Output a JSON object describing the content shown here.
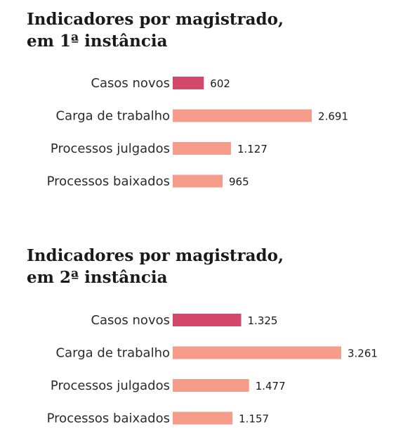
{
  "colors": {
    "highlight": "#d2476a",
    "bar": "#f59c8a",
    "text": "#1a1a1a"
  },
  "chart_data": [
    {
      "type": "bar",
      "orientation": "horizontal",
      "title": "Indicadores por magistrado,\nem 1ª instância",
      "categories": [
        "Casos novos",
        "Carga de trabalho",
        "Processos julgados",
        "Processos baixados"
      ],
      "values": [
        602,
        2691,
        1127,
        965
      ],
      "value_labels": [
        "602",
        "2.691",
        "1.127",
        "965"
      ],
      "highlight_index": 0,
      "xlim": [
        0,
        3261
      ]
    },
    {
      "type": "bar",
      "orientation": "horizontal",
      "title": "Indicadores por magistrado,\nem 2ª instância",
      "categories": [
        "Casos novos",
        "Carga de trabalho",
        "Processos julgados",
        "Processos baixados"
      ],
      "values": [
        1325,
        3261,
        1477,
        1157
      ],
      "value_labels": [
        "1.325",
        "3.261",
        "1.477",
        "1.157"
      ],
      "highlight_index": 0,
      "xlim": [
        0,
        3261
      ]
    }
  ]
}
